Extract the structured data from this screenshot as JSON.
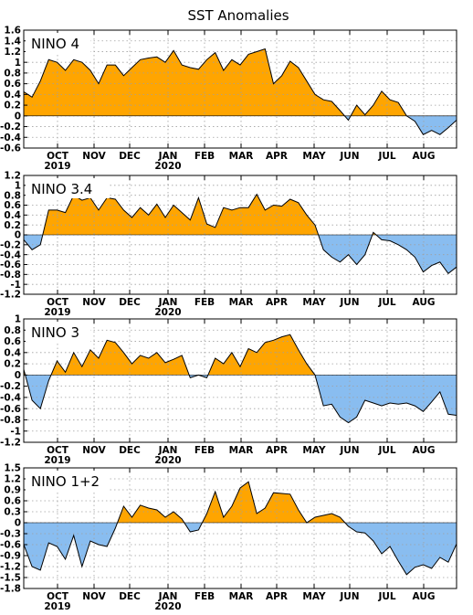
{
  "title": "SST Anomalies",
  "colors": {
    "positive": "#ffa500",
    "negative": "#89bdf0",
    "line": "#000000",
    "grid": "#a0a0a0"
  },
  "month_labels": [
    "OCT",
    "NOV",
    "DEC",
    "JAN",
    "FEB",
    "MAR",
    "APR",
    "MAY",
    "JUN",
    "JUL",
    "AUG"
  ],
  "year_labels": [
    "2019",
    "2020"
  ],
  "chart_data": [
    {
      "type": "area",
      "label": "NINO 4",
      "ylim": [
        -0.6,
        1.6
      ],
      "yticks": [
        "1.6",
        "1.4",
        "1.2",
        "1",
        "0.8",
        "0.6",
        "0.4",
        "0.2",
        "0",
        "-0.2",
        "-0.4",
        "-0.6"
      ],
      "grid": true,
      "y": [
        0.45,
        0.35,
        0.65,
        1.05,
        1.0,
        0.85,
        1.05,
        1.0,
        0.85,
        0.6,
        0.95,
        0.95,
        0.75,
        0.9,
        1.05,
        1.08,
        1.1,
        1.0,
        1.22,
        0.95,
        0.9,
        0.87,
        1.05,
        1.18,
        0.85,
        1.05,
        0.95,
        1.15,
        1.2,
        1.25,
        0.6,
        0.75,
        1.02,
        0.9,
        0.65,
        0.4,
        0.3,
        0.27,
        0.1,
        -0.08,
        0.2,
        0.02,
        0.2,
        0.46,
        0.3,
        0.25,
        0.0,
        -0.1,
        -0.35,
        -0.27,
        -0.35,
        -0.22,
        -0.08
      ]
    },
    {
      "type": "area",
      "label": "NINO 3.4",
      "ylim": [
        -1.2,
        1.2
      ],
      "yticks": [
        "1.2",
        "1",
        "0.8",
        "0.6",
        "0.4",
        "0.2",
        "0",
        "-0.2",
        "-0.4",
        "-0.6",
        "-0.8",
        "-1",
        "-1.2"
      ],
      "grid": true,
      "y": [
        -0.1,
        -0.3,
        -0.2,
        0.5,
        0.5,
        0.45,
        0.8,
        0.7,
        0.75,
        0.5,
        0.75,
        0.72,
        0.5,
        0.35,
        0.55,
        0.4,
        0.62,
        0.35,
        0.6,
        0.45,
        0.3,
        0.75,
        0.22,
        0.15,
        0.55,
        0.5,
        0.55,
        0.55,
        0.82,
        0.5,
        0.6,
        0.58,
        0.72,
        0.65,
        0.4,
        0.2,
        -0.3,
        -0.45,
        -0.55,
        -0.4,
        -0.6,
        -0.4,
        0.05,
        -0.1,
        -0.12,
        -0.2,
        -0.3,
        -0.45,
        -0.75,
        -0.62,
        -0.55,
        -0.78,
        -0.65
      ]
    },
    {
      "type": "area",
      "label": "NINO 3",
      "ylim": [
        -1.2,
        1.0
      ],
      "yticks": [
        "1",
        "0.8",
        "0.6",
        "0.4",
        "0.2",
        "0",
        "-0.2",
        "-0.4",
        "-0.6",
        "-0.8",
        "-1",
        "-1.2"
      ],
      "grid": true,
      "y": [
        0.1,
        -0.45,
        -0.6,
        -0.1,
        0.25,
        0.05,
        0.4,
        0.15,
        0.45,
        0.3,
        0.62,
        0.58,
        0.4,
        0.2,
        0.35,
        0.3,
        0.4,
        0.22,
        0.28,
        0.35,
        -0.05,
        0.0,
        -0.05,
        0.3,
        0.2,
        0.4,
        0.15,
        0.47,
        0.4,
        0.58,
        0.62,
        0.68,
        0.72,
        0.45,
        0.2,
        0.0,
        -0.55,
        -0.52,
        -0.75,
        -0.85,
        -0.75,
        -0.45,
        -0.5,
        -0.55,
        -0.5,
        -0.52,
        -0.5,
        -0.55,
        -0.65,
        -0.48,
        -0.3,
        -0.7,
        -0.72
      ]
    },
    {
      "type": "area",
      "label": "NINO 1+2",
      "ylim": [
        -1.8,
        1.5
      ],
      "yticks": [
        "1.5",
        "1.2",
        "0.9",
        "0.6",
        "0.3",
        "0",
        "-0.3",
        "-0.6",
        "-0.9",
        "-1.2",
        "-1.5",
        "-1.8"
      ],
      "grid": true,
      "y": [
        -0.6,
        -1.2,
        -1.3,
        -0.55,
        -0.65,
        -1.0,
        -0.35,
        -1.2,
        -0.5,
        -0.6,
        -0.65,
        -0.15,
        0.45,
        0.15,
        0.48,
        0.4,
        0.35,
        0.15,
        0.3,
        0.1,
        -0.25,
        -0.2,
        0.25,
        0.85,
        0.15,
        0.45,
        0.95,
        1.12,
        0.25,
        0.4,
        0.82,
        0.8,
        0.78,
        0.35,
        0.0,
        0.15,
        0.2,
        0.25,
        0.15,
        -0.1,
        -0.25,
        -0.28,
        -0.5,
        -0.85,
        -0.65,
        -1.05,
        -1.42,
        -1.22,
        -1.15,
        -1.25,
        -0.95,
        -1.08,
        -0.58
      ]
    }
  ]
}
